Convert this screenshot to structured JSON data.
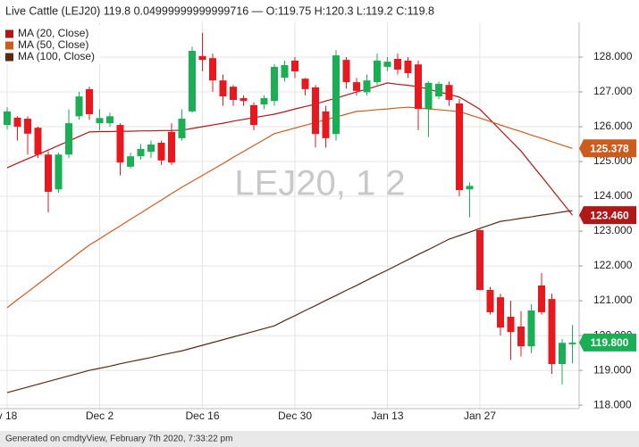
{
  "chart_data": {
    "type": "candlestick",
    "title": "Live Cattle (LEJ20) 119.8 0.04999999999999716 — O:119.75 H:120.3 L:119.2 C:119.8",
    "watermark": "LEJ20, 1 2",
    "footer": "Generated on cmdtyView, February 7th 2020, 7:33:22 pm",
    "categories": [
      "v 18",
      null,
      null,
      null,
      null,
      null,
      null,
      null,
      null,
      "Dec 2",
      null,
      null,
      null,
      null,
      null,
      null,
      null,
      null,
      null,
      "Dec 16",
      null,
      null,
      null,
      null,
      null,
      null,
      null,
      null,
      "Dec 30",
      null,
      null,
      null,
      null,
      null,
      null,
      null,
      null,
      "Jan 13",
      null,
      null,
      null,
      null,
      null,
      null,
      null,
      null,
      "Jan 27",
      null,
      null,
      null,
      null,
      null,
      null,
      null,
      null,
      null
    ],
    "ohlc": {
      "up_color": "#1aaf54",
      "down_color": "#e8191e",
      "open": [
        126.05,
        126.26,
        126.23,
        125.97,
        125.2,
        124.2,
        125.2,
        126.3,
        127.08,
        126.1,
        126.1,
        126.05,
        124.85,
        125.15,
        125.28,
        125.54,
        125.85,
        125.67,
        126.44,
        128.03,
        127.97,
        127.33,
        127.15,
        126.82,
        126.62,
        126.64,
        126.74,
        127.41,
        127.9,
        127.38,
        127.13,
        126.44,
        125.79,
        127.92,
        127.28,
        126.99,
        127.28,
        127.72,
        127.95,
        127.9,
        127.79,
        126.51,
        126.87,
        127.2,
        126.67,
        124.2,
        123.03,
        121.31,
        121.1,
        120.54,
        120.26,
        119.69,
        121.44,
        121.05,
        119.18,
        119.75
      ],
      "high": [
        126.56,
        126.3,
        126.3,
        126.0,
        125.3,
        125.25,
        126.5,
        127.0,
        127.15,
        126.5,
        126.4,
        126.1,
        125.25,
        125.5,
        125.6,
        125.6,
        126.1,
        126.5,
        128.3,
        128.7,
        128.1,
        127.5,
        127.2,
        126.9,
        126.7,
        126.9,
        127.8,
        127.9,
        128.0,
        127.4,
        127.2,
        126.6,
        128.2,
        128.0,
        127.4,
        127.5,
        128.1,
        128.0,
        128.1,
        128.0,
        127.9,
        127.3,
        127.3,
        127.3,
        126.8,
        124.4,
        123.05,
        121.4,
        121.2,
        121.0,
        120.7,
        120.9,
        121.8,
        121.2,
        119.9,
        120.3
      ],
      "low": [
        125.92,
        125.6,
        125.2,
        125.1,
        123.54,
        124.1,
        125.1,
        126.2,
        126.2,
        125.9,
        126.0,
        124.6,
        124.8,
        125.05,
        125.1,
        124.9,
        124.9,
        125.6,
        126.4,
        127.6,
        127.0,
        126.6,
        126.6,
        126.6,
        125.9,
        126.5,
        126.6,
        127.3,
        127.4,
        126.9,
        125.4,
        125.4,
        125.6,
        127.1,
        126.9,
        126.9,
        127.2,
        127.6,
        127.5,
        127.4,
        125.9,
        125.7,
        126.8,
        126.6,
        124.0,
        123.4,
        121.3,
        120.6,
        120.0,
        119.3,
        119.4,
        119.5,
        120.6,
        118.9,
        118.6,
        119.2
      ],
      "close": [
        126.44,
        126.0,
        125.8,
        125.2,
        124.13,
        125.2,
        126.1,
        126.87,
        126.36,
        126.25,
        126.3,
        124.97,
        125.15,
        125.36,
        125.49,
        125.03,
        124.97,
        126.23,
        128.18,
        127.92,
        127.33,
        126.87,
        126.77,
        126.74,
        126.05,
        126.82,
        127.72,
        127.77,
        127.59,
        127.08,
        125.79,
        125.67,
        128.05,
        127.28,
        127.03,
        127.33,
        127.9,
        127.87,
        127.64,
        127.54,
        126.51,
        127.26,
        127.23,
        126.77,
        124.18,
        124.3,
        121.31,
        120.67,
        120.23,
        120.1,
        119.69,
        120.72,
        120.67,
        119.18,
        119.79,
        119.8
      ],
      "close_labels": [
        null,
        null,
        null,
        null,
        null,
        null,
        null,
        null,
        null,
        null,
        null,
        null,
        null,
        null,
        null,
        null,
        null,
        null,
        null,
        null,
        null,
        null,
        null,
        null,
        null,
        null,
        null,
        null,
        null,
        null,
        null,
        null,
        null,
        null,
        null,
        null,
        null,
        null,
        null,
        null,
        null,
        null,
        null,
        null,
        null,
        null,
        null,
        null,
        null,
        null,
        null,
        null,
        null,
        null,
        null,
        "119.800"
      ]
    },
    "series": [
      {
        "name": "MA (20, Close)",
        "color": "#b01818",
        "values": [
          124.82,
          124.95,
          125.08,
          125.2,
          125.33,
          125.46,
          125.59,
          125.72,
          125.85,
          125.86,
          125.86,
          125.87,
          125.87,
          125.88,
          125.88,
          125.89,
          125.89,
          125.9,
          125.95,
          126.0,
          126.05,
          126.1,
          126.16,
          126.21,
          126.26,
          126.31,
          126.36,
          126.43,
          126.51,
          126.58,
          126.65,
          126.74,
          126.82,
          126.91,
          127.0,
          127.08,
          127.17,
          127.26,
          127.22,
          127.19,
          127.15,
          127.08,
          127.0,
          126.93,
          126.85,
          126.68,
          126.5,
          126.2,
          125.9,
          125.6,
          125.3,
          124.93,
          124.57,
          124.2,
          123.83,
          123.46
        ],
        "value_labels": [
          null,
          null,
          null,
          null,
          null,
          null,
          null,
          null,
          null,
          null,
          null,
          null,
          null,
          null,
          null,
          null,
          null,
          null,
          null,
          null,
          null,
          null,
          null,
          null,
          null,
          null,
          null,
          null,
          null,
          null,
          null,
          null,
          null,
          null,
          null,
          null,
          null,
          null,
          null,
          null,
          null,
          null,
          null,
          null,
          null,
          null,
          null,
          null,
          null,
          null,
          null,
          null,
          null,
          null,
          null,
          "123.460"
        ]
      },
      {
        "name": "MA (50, Close)",
        "color": "#cc5c1e",
        "values": [
          120.8,
          121.03,
          121.25,
          121.48,
          121.7,
          121.93,
          122.15,
          122.38,
          122.6,
          122.78,
          122.97,
          123.15,
          123.34,
          123.52,
          123.71,
          123.89,
          124.08,
          124.26,
          124.43,
          124.6,
          124.77,
          124.94,
          125.12,
          125.29,
          125.46,
          125.63,
          125.8,
          125.88,
          125.96,
          126.04,
          126.12,
          126.2,
          126.28,
          126.36,
          126.44,
          126.46,
          126.49,
          126.51,
          126.54,
          126.56,
          126.54,
          126.51,
          126.49,
          126.46,
          126.44,
          126.34,
          126.25,
          126.15,
          126.05,
          125.95,
          125.86,
          125.76,
          125.67,
          125.57,
          125.47,
          125.378
        ],
        "value_labels": [
          null,
          null,
          null,
          null,
          null,
          null,
          null,
          null,
          null,
          null,
          null,
          null,
          null,
          null,
          null,
          null,
          null,
          null,
          null,
          null,
          null,
          null,
          null,
          null,
          null,
          null,
          null,
          null,
          null,
          null,
          null,
          null,
          null,
          null,
          null,
          null,
          null,
          null,
          null,
          null,
          null,
          null,
          null,
          null,
          null,
          null,
          null,
          null,
          null,
          null,
          null,
          null,
          null,
          null,
          null,
          "125.378"
        ]
      },
      {
        "name": "MA (100, Close)",
        "color": "#5a2a12",
        "values": [
          118.36,
          118.44,
          118.52,
          118.6,
          118.68,
          118.76,
          118.84,
          118.92,
          119.0,
          119.06,
          119.12,
          119.19,
          119.25,
          119.31,
          119.37,
          119.44,
          119.5,
          119.56,
          119.64,
          119.72,
          119.8,
          119.88,
          119.96,
          120.04,
          120.12,
          120.2,
          120.28,
          120.43,
          120.57,
          120.72,
          120.86,
          121.01,
          121.15,
          121.3,
          121.44,
          121.59,
          121.74,
          121.88,
          122.03,
          122.18,
          122.33,
          122.47,
          122.62,
          122.77,
          122.87,
          122.97,
          123.08,
          123.18,
          123.28,
          123.32,
          123.37,
          123.41,
          123.46,
          123.5,
          123.55,
          123.59
        ]
      }
    ],
    "ylim": [
      117.9,
      129.0
    ],
    "yticks": [
      {
        "value": 118,
        "label": "118.000"
      },
      {
        "value": 119,
        "label": "119.000"
      },
      {
        "value": 120,
        "label": "120.000"
      },
      {
        "value": 121,
        "label": "121.000"
      },
      {
        "value": 122,
        "label": "122.000"
      },
      {
        "value": 123,
        "label": "123.000"
      },
      {
        "value": 124,
        "label": "124.000"
      },
      {
        "value": 125,
        "label": "125.000"
      },
      {
        "value": 126,
        "label": "126.000"
      },
      {
        "value": 127,
        "label": "127.000"
      },
      {
        "value": 128,
        "label": "128.000"
      }
    ],
    "grid": true,
    "legend": "top-left"
  }
}
